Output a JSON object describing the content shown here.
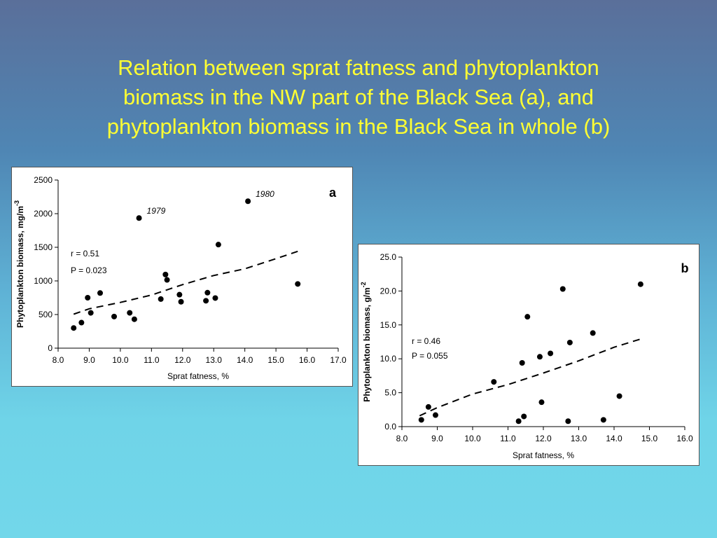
{
  "slide": {
    "title_lines": [
      "Relation between sprat fatness and phytoplankton",
      "biomass in the NW part of the Black Sea (a), and",
      "phytoplankton biomass in the Black Sea  in whole (b)"
    ],
    "title_color": "#ffff33"
  },
  "chart_data": [
    {
      "id": "a",
      "type": "scatter",
      "panel_label": "a",
      "xlabel": "Sprat fatness, %",
      "ylabel": "Phytoplankton biomass, mg/m",
      "ylabel_sup": "-3",
      "xlim": [
        8.0,
        17.0
      ],
      "ylim": [
        0,
        2500
      ],
      "x_ticks": [
        "8.0",
        "9.0",
        "10.0",
        "11.0",
        "12.0",
        "13.0",
        "14.0",
        "15.0",
        "16.0",
        "17.0"
      ],
      "x_tick_values": [
        8,
        9,
        10,
        11,
        12,
        13,
        14,
        15,
        16,
        17
      ],
      "y_ticks": [
        "0",
        "500",
        "1000",
        "1500",
        "2000",
        "2500"
      ],
      "y_tick_values": [
        0,
        500,
        1000,
        1500,
        2000,
        2500
      ],
      "stat_r": "r = 0.51",
      "stat_p": "P = 0.023",
      "points": [
        {
          "x": 8.5,
          "y": 300
        },
        {
          "x": 8.75,
          "y": 380
        },
        {
          "x": 8.95,
          "y": 750
        },
        {
          "x": 9.05,
          "y": 525
        },
        {
          "x": 9.35,
          "y": 820
        },
        {
          "x": 9.8,
          "y": 470
        },
        {
          "x": 10.3,
          "y": 525
        },
        {
          "x": 10.45,
          "y": 430
        },
        {
          "x": 10.6,
          "y": 1935,
          "label": "1979"
        },
        {
          "x": 11.3,
          "y": 730
        },
        {
          "x": 11.45,
          "y": 1095
        },
        {
          "x": 11.5,
          "y": 1015
        },
        {
          "x": 11.9,
          "y": 795
        },
        {
          "x": 11.95,
          "y": 690
        },
        {
          "x": 12.75,
          "y": 705
        },
        {
          "x": 12.8,
          "y": 825
        },
        {
          "x": 13.05,
          "y": 745
        },
        {
          "x": 13.15,
          "y": 1540
        },
        {
          "x": 14.1,
          "y": 2185,
          "label": "1980"
        },
        {
          "x": 15.7,
          "y": 955
        }
      ],
      "trend": [
        {
          "x": 8.5,
          "y": 505
        },
        {
          "x": 9.0,
          "y": 585
        },
        {
          "x": 10.0,
          "y": 680
        },
        {
          "x": 11.0,
          "y": 790
        },
        {
          "x": 12.0,
          "y": 945
        },
        {
          "x": 13.0,
          "y": 1080
        },
        {
          "x": 14.0,
          "y": 1180
        },
        {
          "x": 15.0,
          "y": 1330
        },
        {
          "x": 15.7,
          "y": 1440
        }
      ],
      "series_color": "#000000"
    },
    {
      "id": "b",
      "type": "scatter",
      "panel_label": "b",
      "xlabel": "Sprat fatness, %",
      "ylabel": "Phytoplankton biomass, g/m",
      "ylabel_sup": "-2",
      "xlim": [
        8.0,
        16.0
      ],
      "ylim": [
        0,
        25
      ],
      "x_ticks": [
        "8.0",
        "9.0",
        "10.0",
        "11.0",
        "12.0",
        "13.0",
        "14.0",
        "15.0",
        "16.0"
      ],
      "x_tick_values": [
        8,
        9,
        10,
        11,
        12,
        13,
        14,
        15,
        16
      ],
      "y_ticks": [
        "0.0",
        "5.0",
        "10.0",
        "15.0",
        "20.0",
        "25.0"
      ],
      "y_tick_values": [
        0,
        5,
        10,
        15,
        20,
        25
      ],
      "stat_r": "r = 0.46",
      "stat_p": "P = 0.055",
      "points": [
        {
          "x": 8.55,
          "y": 1.0
        },
        {
          "x": 8.75,
          "y": 2.9
        },
        {
          "x": 8.95,
          "y": 1.7
        },
        {
          "x": 10.6,
          "y": 6.6
        },
        {
          "x": 11.3,
          "y": 0.8
        },
        {
          "x": 11.4,
          "y": 9.4
        },
        {
          "x": 11.45,
          "y": 1.5
        },
        {
          "x": 11.55,
          "y": 16.2
        },
        {
          "x": 11.9,
          "y": 10.3
        },
        {
          "x": 11.95,
          "y": 3.6
        },
        {
          "x": 12.2,
          "y": 10.8
        },
        {
          "x": 12.55,
          "y": 20.3
        },
        {
          "x": 12.7,
          "y": 0.8
        },
        {
          "x": 12.75,
          "y": 12.4
        },
        {
          "x": 13.4,
          "y": 13.8
        },
        {
          "x": 13.7,
          "y": 1.0
        },
        {
          "x": 14.15,
          "y": 4.5
        },
        {
          "x": 14.75,
          "y": 21.0
        }
      ],
      "trend": [
        {
          "x": 8.5,
          "y": 1.6
        },
        {
          "x": 9.0,
          "y": 2.8
        },
        {
          "x": 10.0,
          "y": 4.8
        },
        {
          "x": 11.0,
          "y": 6.2
        },
        {
          "x": 12.0,
          "y": 7.9
        },
        {
          "x": 13.0,
          "y": 9.7
        },
        {
          "x": 14.0,
          "y": 11.7
        },
        {
          "x": 14.8,
          "y": 13.0
        }
      ],
      "series_color": "#000000"
    }
  ]
}
